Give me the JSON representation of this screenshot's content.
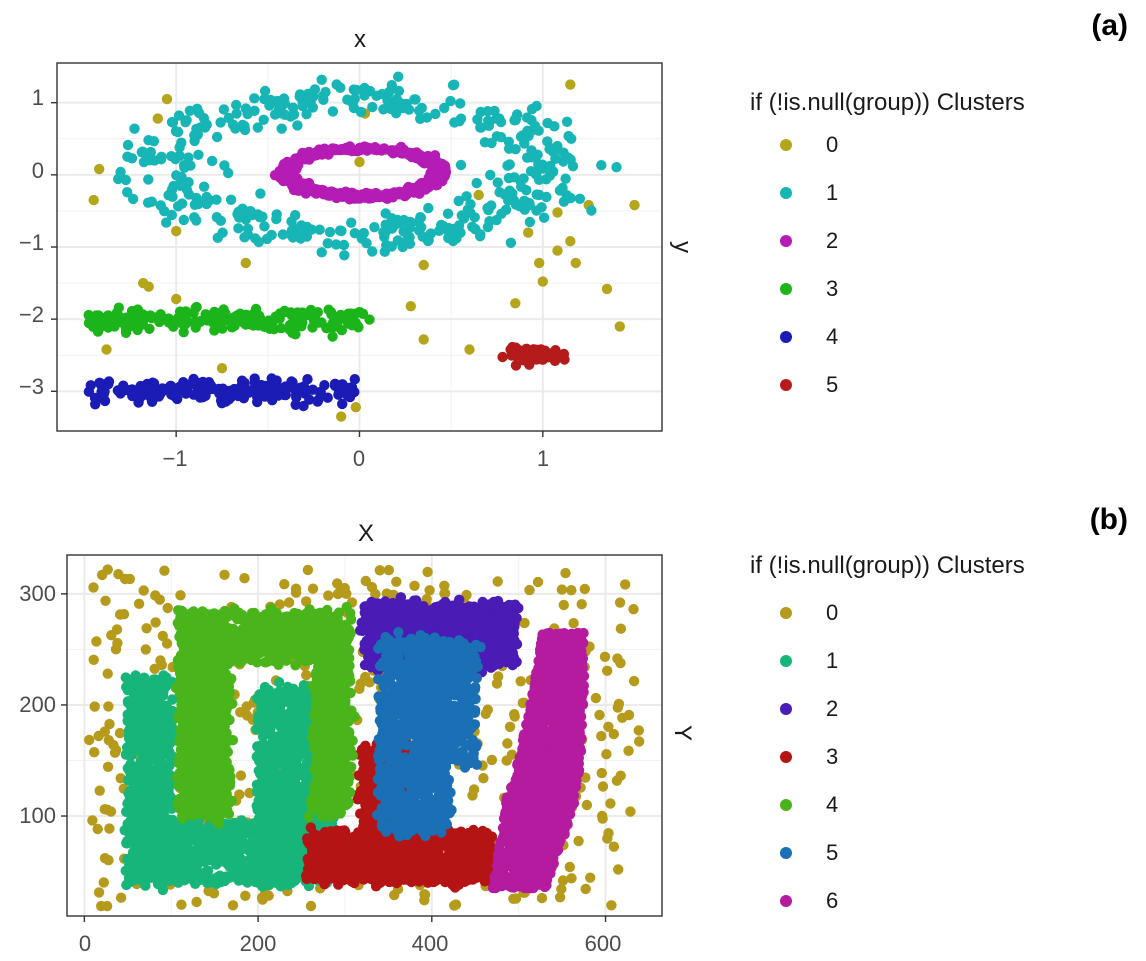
{
  "chart_data": [
    {
      "panel": "(a)",
      "type": "scatter",
      "title": "",
      "xlabel": "x",
      "ylabel": "y",
      "x_ticks": [
        "−1",
        "0",
        "1"
      ],
      "y_ticks": [
        "1",
        "0",
        "−1",
        "−2",
        "−3"
      ],
      "xlim": [
        -1.65,
        1.65
      ],
      "ylim": [
        -3.55,
        1.55
      ],
      "grid": true,
      "legend_placement": "right",
      "legend_title": "if (!is.null(group)) Clusters",
      "series": [
        {
          "name": "0",
          "color": "#b5a51b",
          "shape": "noise",
          "values": [
            [
              -1.45,
              -0.35
            ],
            [
              -1.42,
              0.08
            ],
            [
              -1.05,
              1.05
            ],
            [
              -1.1,
              0.78
            ],
            [
              -1.0,
              -0.78
            ],
            [
              -1.18,
              -1.5
            ],
            [
              -1.15,
              -1.55
            ],
            [
              -1.0,
              -1.72
            ],
            [
              -1.38,
              -2.42
            ],
            [
              -0.75,
              -2.68
            ],
            [
              -0.62,
              -1.22
            ],
            [
              -0.1,
              -3.35
            ],
            [
              -0.02,
              -3.22
            ],
            [
              0.03,
              0.85
            ],
            [
              0.0,
              0.18
            ],
            [
              0.28,
              -1.82
            ],
            [
              0.35,
              -2.28
            ],
            [
              0.6,
              -2.42
            ],
            [
              0.65,
              -0.28
            ],
            [
              0.85,
              -1.78
            ],
            [
              0.92,
              -0.8
            ],
            [
              0.98,
              -1.22
            ],
            [
              1.0,
              -1.48
            ],
            [
              1.08,
              -0.52
            ],
            [
              1.08,
              -1.05
            ],
            [
              1.15,
              -0.92
            ],
            [
              1.18,
              -1.22
            ],
            [
              1.25,
              -0.42
            ],
            [
              1.15,
              1.25
            ],
            [
              1.35,
              -1.58
            ],
            [
              1.42,
              -2.1
            ],
            [
              1.5,
              -0.42
            ],
            [
              0.35,
              -1.25
            ]
          ]
        },
        {
          "name": "1",
          "color": "#17b5b5",
          "shape": "ring",
          "cx": -0.02,
          "cy": 0.1,
          "rx": 1.05,
          "ry": 0.95,
          "jitter": 0.13,
          "count": 430
        },
        {
          "name": "2",
          "color": "#b51bb5",
          "shape": "ring",
          "cx": 0.02,
          "cy": 0.03,
          "rx": 0.42,
          "ry": 0.33,
          "jitter": 0.06,
          "count": 520
        },
        {
          "name": "3",
          "color": "#1bb51b",
          "shape": "band",
          "x0": -1.48,
          "x1": 0.06,
          "y": -2.02,
          "jy": 0.14,
          "count": 200
        },
        {
          "name": "4",
          "color": "#1b1bb5",
          "shape": "band",
          "x0": -1.48,
          "x1": -0.02,
          "y": -3.0,
          "jy": 0.13,
          "count": 190
        },
        {
          "name": "5",
          "color": "#b51b1b",
          "shape": "blob",
          "cx": 0.97,
          "cy": -2.5,
          "rx": 0.17,
          "ry": 0.1,
          "count": 60
        }
      ]
    },
    {
      "panel": "(b)",
      "type": "scatter",
      "title": "",
      "xlabel": "X",
      "ylabel": "Y",
      "x_ticks": [
        "0",
        "200",
        "400",
        "600"
      ],
      "y_ticks": [
        "300",
        "200",
        "100"
      ],
      "xlim": [
        -20,
        665
      ],
      "ylim": [
        10,
        335
      ],
      "grid": true,
      "legend_placement": "right",
      "legend_title": "if (!is.null(group)) Clusters",
      "series": [
        {
          "name": "0",
          "color": "#b59a1b",
          "shape": "noise-rect",
          "x0": 5,
          "x1": 640,
          "y0": 18,
          "y1": 322,
          "count": 500
        },
        {
          "name": "1",
          "color": "#17b57a",
          "shape": "rects",
          "rects": [
            [
              50,
              100,
              40,
              225
            ],
            [
              55,
              240,
              40,
              95
            ],
            [
              200,
              290,
              40,
              215
            ]
          ],
          "count": 2200
        },
        {
          "name": "2",
          "color": "#4a1bb5",
          "shape": "rects",
          "rects": [
            [
              325,
              495,
              235,
              290
            ]
          ],
          "count": 1100
        },
        {
          "name": "3",
          "color": "#b51414",
          "shape": "rects",
          "rects": [
            [
              258,
              470,
              42,
              85
            ],
            [
              320,
              375,
              85,
              165
            ]
          ],
          "count": 1300
        },
        {
          "name": "4",
          "color": "#4ab51b",
          "shape": "rects",
          "rects": [
            [
              110,
              305,
              240,
              282
            ],
            [
              110,
              165,
              100,
              240
            ],
            [
              265,
              305,
              100,
              240
            ]
          ],
          "count": 1900
        },
        {
          "name": "5",
          "color": "#1b6fb5",
          "shape": "rects",
          "rects": [
            [
              340,
              420,
              85,
              260
            ],
            [
              390,
              450,
              145,
              255
            ]
          ],
          "count": 1100
        },
        {
          "name": "6",
          "color": "#b51b9e",
          "shape": "blob-path",
          "count": 1600
        }
      ]
    }
  ]
}
